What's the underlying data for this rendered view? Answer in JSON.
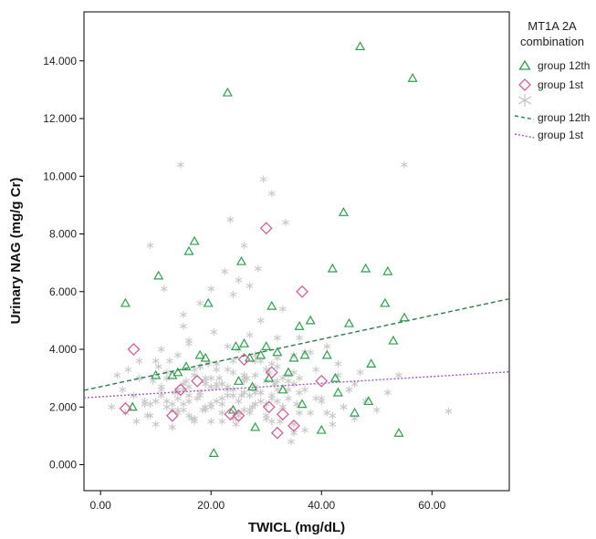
{
  "chart_data": {
    "type": "scatter",
    "xlabel": "TWICL (mg/dL)",
    "ylabel": "Urinary NAG (mg/g Cr)",
    "xlim": [
      -3,
      74
    ],
    "ylim": [
      -0.9,
      15.7
    ],
    "x_ticks": [
      0,
      20,
      40,
      60
    ],
    "x_tick_labels": [
      "0.00",
      "20.00",
      "40.00",
      "60.00"
    ],
    "y_ticks": [
      0,
      2,
      4,
      6,
      8,
      10,
      12,
      14
    ],
    "y_tick_labels": [
      "0.000",
      "2.000",
      "4.000",
      "6.000",
      "8.000",
      "10.000",
      "12.000",
      "14.000"
    ],
    "grid": false,
    "legend_title": "MT1A 2A combination",
    "legend_title_lines": [
      "MT1A 2A",
      "combination"
    ],
    "legend_placement": "right",
    "colors": {
      "group12": "#2e9e4e",
      "group1": "#d0609a",
      "other": "#c8c8c8",
      "line12": "#2f7a4c",
      "line1": "#a05ab8"
    },
    "series": [
      {
        "name": "group 12th",
        "marker": "triangle",
        "x": [
          4.5,
          5.8,
          10,
          10.5,
          13,
          14,
          15.5,
          16,
          17,
          18,
          19,
          19.5,
          20.5,
          23,
          24,
          24.5,
          25,
          25.5,
          26,
          27,
          27.5,
          28,
          29,
          30,
          30.5,
          31,
          32,
          33,
          34,
          35,
          36,
          36.5,
          37,
          38,
          40,
          41,
          42,
          42.5,
          43,
          44,
          45,
          46,
          47,
          48,
          48.5,
          49,
          51.5,
          52,
          53,
          54,
          55,
          56.5
        ],
        "y": [
          5.6,
          2.0,
          3.1,
          6.55,
          3.1,
          3.2,
          3.4,
          7.4,
          7.75,
          3.8,
          3.7,
          5.6,
          0.4,
          12.9,
          1.9,
          4.1,
          2.9,
          7.05,
          4.2,
          3.7,
          2.7,
          1.3,
          3.8,
          4.1,
          3.0,
          5.5,
          3.9,
          2.6,
          3.2,
          3.7,
          4.8,
          2.1,
          3.8,
          5.0,
          1.2,
          3.8,
          6.8,
          3.0,
          2.5,
          8.75,
          4.9,
          1.8,
          14.5,
          6.8,
          2.2,
          3.5,
          5.6,
          6.7,
          4.3,
          1.1,
          5.1,
          13.4
        ]
      },
      {
        "name": "group 1st",
        "marker": "diamond",
        "x": [
          4.5,
          6,
          13,
          14.5,
          17.5,
          23.5,
          25,
          26,
          30,
          30.5,
          31,
          32,
          33,
          35,
          36.5,
          40
        ],
        "y": [
          1.95,
          4.0,
          1.7,
          2.6,
          2.9,
          1.75,
          1.7,
          3.65,
          8.2,
          2.0,
          3.2,
          1.1,
          1.75,
          1.35,
          6.0,
          2.9
        ]
      },
      {
        "name": "",
        "marker": "asterisk",
        "x": [
          2,
          3,
          4,
          4.5,
          5,
          6,
          6.5,
          7,
          8,
          8.5,
          9,
          9.5,
          10,
          10.5,
          11,
          11.5,
          12,
          12.5,
          13,
          13.5,
          14,
          14.5,
          15,
          15.5,
          16,
          16.5,
          17,
          17.5,
          18,
          18.5,
          19,
          19.5,
          20,
          20.5,
          21,
          21.5,
          22,
          22.5,
          23,
          23.5,
          24,
          24.5,
          25,
          25.5,
          26,
          26.5,
          27,
          27.5,
          28,
          28.5,
          29,
          29.5,
          30,
          30.5,
          31,
          31.5,
          32,
          32.5,
          33,
          33.5,
          34,
          34.5,
          35,
          35.5,
          36,
          37,
          38,
          39,
          40,
          41,
          42,
          43,
          44,
          45,
          46,
          47,
          48,
          50,
          52,
          54,
          55,
          63,
          7,
          8,
          9,
          11,
          12,
          13,
          14,
          15,
          16,
          17,
          18,
          19,
          20,
          21,
          22,
          23,
          24,
          25,
          26,
          27,
          28,
          29,
          30,
          31,
          32,
          33,
          34,
          35,
          36,
          38,
          40,
          42,
          44,
          46,
          10,
          12,
          14,
          16,
          18,
          20,
          22,
          24,
          26,
          28,
          30,
          32,
          34,
          36,
          12,
          14,
          15,
          16,
          17,
          18,
          19,
          20,
          21,
          22,
          23,
          24,
          25,
          26,
          27,
          28,
          29,
          30,
          31,
          32,
          33,
          35,
          37,
          39,
          41,
          43,
          45,
          11,
          13,
          15,
          17,
          19,
          21,
          23,
          25,
          27,
          29,
          31,
          33,
          35,
          15,
          16,
          18,
          20,
          22,
          24,
          26,
          28,
          30,
          32,
          34,
          36,
          14,
          16,
          18,
          20,
          22,
          24,
          26,
          28,
          30,
          32,
          10,
          13,
          17,
          21,
          25,
          29,
          33,
          37,
          9,
          11,
          15,
          19,
          23,
          27,
          31,
          35
        ],
        "y": [
          2.0,
          3.1,
          2.6,
          1.8,
          3.3,
          2.4,
          1.5,
          3.0,
          2.2,
          1.7,
          7.6,
          2.9,
          1.4,
          3.4,
          2.7,
          6.1,
          2.0,
          3.6,
          1.3,
          2.5,
          3.8,
          10.4,
          2.1,
          2.9,
          4.2,
          1.6,
          3.1,
          2.3,
          5.6,
          1.9,
          2.8,
          3.5,
          1.5,
          4.6,
          2.2,
          3.0,
          1.8,
          6.7,
          2.6,
          8.5,
          3.2,
          1.4,
          4.0,
          2.4,
          7.6,
          3.0,
          6.2,
          2.0,
          3.6,
          6.8,
          2.5,
          9.9,
          1.7,
          3.2,
          9.4,
          2.8,
          4.4,
          1.5,
          3.0,
          8.4,
          2.3,
          0.8,
          3.8,
          2.1,
          4.4,
          2.6,
          1.8,
          3.3,
          2.2,
          4.1,
          1.4,
          3.5,
          2.0,
          2.6,
          1.6,
          3.2,
          2.2,
          1.9,
          2.5,
          3.1,
          10.4,
          1.85,
          3.6,
          2.1,
          1.7,
          2.4,
          3.0,
          1.9,
          2.6,
          4.8,
          2.2,
          1.6,
          3.4,
          2.0,
          6.1,
          2.8,
          1.5,
          3.3,
          2.4,
          1.8,
          2.9,
          4.5,
          2.1,
          5.0,
          1.6,
          3.5,
          2.6,
          2.0,
          3.1,
          1.4,
          2.5,
          3.9,
          2.3,
          1.7,
          2.0,
          2.8,
          3.6,
          2.2,
          1.9,
          2.7,
          3.4,
          2.0,
          2.8,
          1.6,
          3.1,
          2.5,
          2.1,
          3.7,
          2.9,
          1.8,
          3.2,
          2.3,
          2.6,
          4.3,
          3.3,
          2.4,
          1.9,
          2.7,
          3.5,
          2.1,
          4.1,
          2.6,
          1.7,
          3.0,
          2.4,
          3.8,
          2.2,
          2.9,
          1.5,
          3.4,
          2.0,
          2.8,
          3.9,
          2.3,
          1.8,
          3.1,
          2.6,
          4.0,
          2.1,
          5.2,
          1.6,
          2.9,
          3.3,
          2.7,
          2.2,
          1.9,
          3.6,
          2.4,
          2.0,
          3.2,
          2.8,
          1.7,
          2.5,
          3.0,
          2.3,
          3.6,
          1.9,
          2.7,
          3.3,
          2.2,
          2.6,
          3.0,
          1.8,
          2.4,
          3.4,
          2.1,
          2.8,
          5.9,
          2.5,
          3.1,
          1.6,
          2.9,
          2.2,
          1.3,
          1.5,
          2.7,
          6.4,
          2.5,
          5.4,
          1.2,
          2.1,
          2.6,
          1.9,
          3.0,
          2.4,
          1.8,
          2.3,
          1.1
        ]
      }
    ],
    "fit_lines": [
      {
        "name": "group 12th",
        "style": "dashed",
        "x": [
          -3,
          74
        ],
        "y": [
          2.58,
          5.75
        ]
      },
      {
        "name": "group 1st",
        "style": "dotted",
        "x": [
          -3,
          74
        ],
        "y": [
          2.32,
          3.22
        ]
      }
    ]
  }
}
